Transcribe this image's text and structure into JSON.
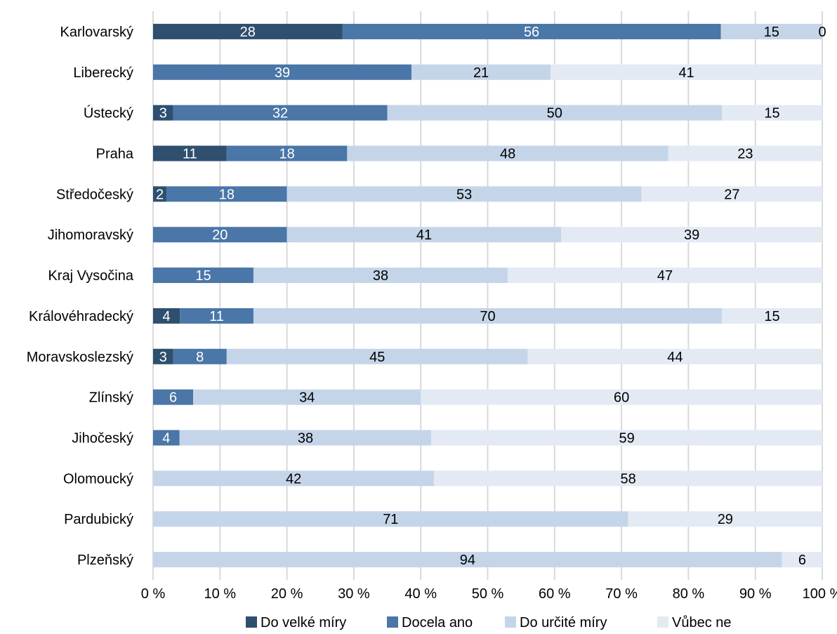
{
  "chart_data": {
    "type": "bar",
    "orientation": "horizontal",
    "stacked": "percent",
    "categories": [
      "Karlovarský",
      "Liberecký",
      "Ústecký",
      "Praha",
      "Středočeský",
      "Jihomoravský",
      "Kraj Vysočina",
      "Královéhradecký",
      "Moravskoslezský",
      "Zlínský",
      "Jihočeský",
      "Olomoucký",
      "Pardubický",
      "Plzeňský"
    ],
    "series": [
      {
        "name": "Do velké míry",
        "color": "#2f4f6f",
        "values": [
          28,
          0,
          3,
          11,
          2,
          0,
          0,
          4,
          3,
          0,
          0,
          0,
          0,
          0
        ]
      },
      {
        "name": "Docela ano",
        "color": "#4a76a8",
        "values": [
          56,
          39,
          32,
          18,
          18,
          20,
          15,
          11,
          8,
          6,
          4,
          0,
          0,
          0
        ]
      },
      {
        "name": "Do určité míry",
        "color": "#c5d5e9",
        "values": [
          15,
          21,
          50,
          48,
          53,
          41,
          38,
          70,
          45,
          34,
          38,
          42,
          71,
          94
        ]
      },
      {
        "name": "Vůbec ne",
        "color": "#e3eaf4",
        "values": [
          0,
          41,
          15,
          23,
          27,
          39,
          47,
          15,
          44,
          60,
          59,
          58,
          29,
          6
        ]
      }
    ],
    "xaxis": {
      "min": 0,
      "max": 100,
      "ticks": [
        "0 %",
        "10 %",
        "20 %",
        "30 %",
        "40 %",
        "50 %",
        "60 %",
        "70 %",
        "80 %",
        "90 %",
        "100 %"
      ]
    },
    "grid": true,
    "legend_position": "bottom"
  }
}
